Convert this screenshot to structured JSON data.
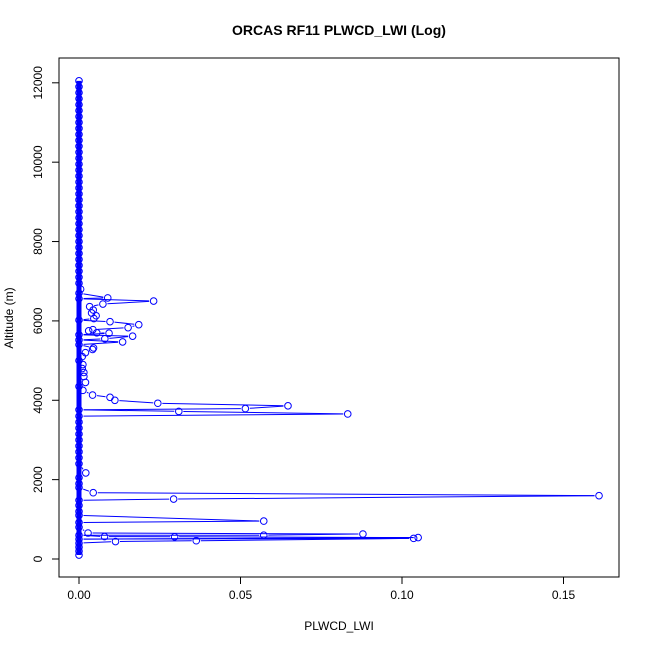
{
  "chart_data": {
    "type": "line",
    "title": "ORCAS RF11 PLWCD_LWI (Log)",
    "xlabel": "PLWCD_LWI",
    "ylabel": "Altitude (m)",
    "xlim": [
      0,
      0.16
    ],
    "ylim": [
      0,
      12000
    ],
    "xticks": [
      0,
      0.05,
      0.1,
      0.15
    ],
    "xtick_labels": [
      "0.00",
      "0.05",
      "0.10",
      "0.15"
    ],
    "yticks": [
      0,
      2000,
      4000,
      6000,
      8000,
      10000,
      12000
    ],
    "ytick_labels": [
      "0",
      "2000",
      "4000",
      "6000",
      "8000",
      "10000",
      "12000"
    ],
    "grid": false,
    "series_color": "#0000ff",
    "marker": "open-circle",
    "points": [
      [
        0,
        12050
      ],
      [
        0,
        11900
      ],
      [
        0,
        11750
      ],
      [
        0,
        11600
      ],
      [
        0,
        11450
      ],
      [
        0,
        11300
      ],
      [
        0,
        11150
      ],
      [
        0,
        11000
      ],
      [
        0,
        10850
      ],
      [
        0,
        10700
      ],
      [
        0,
        10550
      ],
      [
        0,
        10400
      ],
      [
        0,
        10250
      ],
      [
        0,
        10100
      ],
      [
        0,
        9950
      ],
      [
        0,
        9800
      ],
      [
        0,
        9650
      ],
      [
        0,
        9500
      ],
      [
        0,
        9350
      ],
      [
        0,
        9200
      ],
      [
        0,
        9050
      ],
      [
        0,
        8900
      ],
      [
        0,
        8750
      ],
      [
        0,
        8600
      ],
      [
        0,
        8450
      ],
      [
        0,
        8300
      ],
      [
        0,
        8150
      ],
      [
        0,
        8000
      ],
      [
        0,
        7850
      ],
      [
        0,
        7700
      ],
      [
        0,
        7550
      ],
      [
        0,
        7400
      ],
      [
        0,
        7250
      ],
      [
        0,
        7100
      ],
      [
        0,
        6950
      ],
      [
        0.0005,
        6800
      ],
      [
        0,
        6700
      ],
      [
        0.0089,
        6580
      ],
      [
        0,
        6560
      ],
      [
        0.0231,
        6500
      ],
      [
        0.0074,
        6425
      ],
      [
        0.0033,
        6360
      ],
      [
        0.0044,
        6275
      ],
      [
        0.0039,
        6200
      ],
      [
        0.0053,
        6130
      ],
      [
        0.0046,
        6060
      ],
      [
        0,
        6020
      ],
      [
        0.0096,
        5980
      ],
      [
        0.0185,
        5905
      ],
      [
        0.0152,
        5830
      ],
      [
        0.0043,
        5780
      ],
      [
        0.003,
        5750
      ],
      [
        0.0055,
        5700
      ],
      [
        0.0093,
        5690
      ],
      [
        0,
        5650
      ],
      [
        0.0166,
        5615
      ],
      [
        0.008,
        5550
      ],
      [
        0,
        5520
      ],
      [
        0.0135,
        5470
      ],
      [
        0,
        5400
      ],
      [
        0.0045,
        5320
      ],
      [
        0.0042,
        5280
      ],
      [
        0.002,
        5200
      ],
      [
        0.001,
        5100
      ],
      [
        0,
        5000
      ],
      [
        0.0012,
        4900
      ],
      [
        0.001,
        4800
      ],
      [
        0.0015,
        4700
      ],
      [
        0.0015,
        4600
      ],
      [
        0.002,
        4450
      ],
      [
        0,
        4350
      ],
      [
        0.0012,
        4250
      ],
      [
        0.0042,
        4130
      ],
      [
        0.0096,
        4075
      ],
      [
        0.0111,
        4000
      ],
      [
        0.0244,
        3925
      ],
      [
        0.0647,
        3860
      ],
      [
        0.0515,
        3790
      ],
      [
        0,
        3760
      ],
      [
        0.0309,
        3720
      ],
      [
        0.0832,
        3655
      ],
      [
        0,
        3600
      ],
      [
        0,
        3450
      ],
      [
        0,
        3300
      ],
      [
        0,
        3150
      ],
      [
        0,
        3000
      ],
      [
        0,
        2850
      ],
      [
        0,
        2700
      ],
      [
        0,
        2550
      ],
      [
        0,
        2400
      ],
      [
        0.0021,
        2170
      ],
      [
        0,
        2050
      ],
      [
        0,
        1900
      ],
      [
        0,
        1800
      ],
      [
        0.0044,
        1670
      ],
      [
        0.161,
        1595
      ],
      [
        0.0293,
        1510
      ],
      [
        0,
        1480
      ],
      [
        0,
        1350
      ],
      [
        0,
        1200
      ],
      [
        0,
        1100
      ],
      [
        0.0572,
        955
      ],
      [
        0,
        920
      ],
      [
        0,
        800
      ],
      [
        0.0028,
        655
      ],
      [
        0.0879,
        630
      ],
      [
        0.0572,
        600
      ],
      [
        0,
        600
      ],
      [
        0.0079,
        565
      ],
      [
        0.0296,
        560
      ],
      [
        0.105,
        540
      ],
      [
        0,
        500
      ],
      [
        0.1036,
        520
      ],
      [
        0.0363,
        460
      ],
      [
        0.0113,
        440
      ],
      [
        0,
        400
      ],
      [
        0,
        300
      ],
      [
        0,
        200
      ],
      [
        0,
        100
      ]
    ]
  }
}
